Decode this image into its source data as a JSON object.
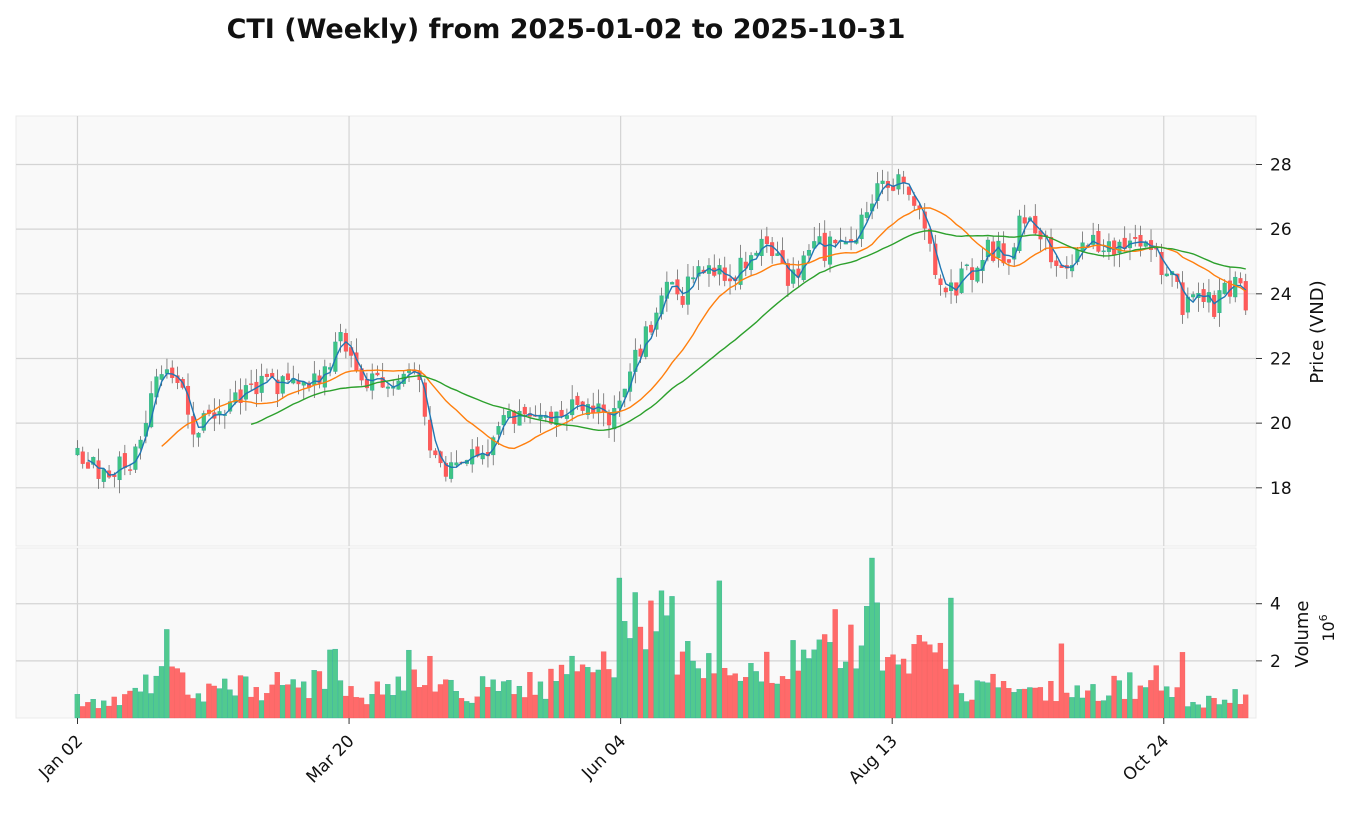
{
  "chart_data": {
    "type": "candlestick",
    "title": "CTI (Weekly) from 2025-01-02 to 2025-10-31",
    "price_panel": {
      "ylabel": "Price (VND)",
      "ylim": [
        16.2,
        29.5
      ],
      "yticks": [
        18,
        20,
        22,
        24,
        26,
        28
      ],
      "grid": true
    },
    "volume_panel": {
      "ylabel": "Volume",
      "scale_label": "10",
      "scale_exponent": "6",
      "ylim": [
        0,
        5.6
      ],
      "yticks": [
        2,
        4
      ],
      "yticks_label": [
        "2",
        "4"
      ],
      "grid": true
    },
    "x_ticks": [
      {
        "label": "Jan 02",
        "index": 0
      },
      {
        "label": "Mar 20",
        "index": 53
      },
      {
        "label": "Jun 04",
        "index": 106
      },
      {
        "label": "Aug 13",
        "index": 159
      },
      {
        "label": "Oct 24",
        "index": 212
      }
    ],
    "x_range": [
      -12,
      230
    ],
    "colors": {
      "up": "#26a69a",
      "up_fill": "#3ec483",
      "down": "#ef5350",
      "down_fill": "#ff5a5a",
      "ma_short": "#1f77b4",
      "ma_mid": "#ff7f0e",
      "ma_long": "#2ca02c",
      "grid": "#d4d4d4",
      "panel_bg": "#f9f9f9"
    },
    "price_anchors": [
      [
        0,
        18.9
      ],
      [
        4,
        18.6
      ],
      [
        7,
        18.5
      ],
      [
        10,
        18.8
      ],
      [
        12,
        19.2
      ],
      [
        14,
        20.5
      ],
      [
        16,
        21.8
      ],
      [
        18,
        21.5
      ],
      [
        20,
        21.4
      ],
      [
        22,
        20.0
      ],
      [
        24,
        19.8
      ],
      [
        26,
        20.3
      ],
      [
        30,
        20.5
      ],
      [
        33,
        21.0
      ],
      [
        36,
        21.2
      ],
      [
        40,
        21.2
      ],
      [
        44,
        21.0
      ],
      [
        48,
        21.6
      ],
      [
        50,
        22.2
      ],
      [
        52,
        22.9
      ],
      [
        53,
        21.8
      ],
      [
        56,
        21.4
      ],
      [
        60,
        21.3
      ],
      [
        63,
        21.5
      ],
      [
        66,
        21.6
      ],
      [
        67,
        21.0
      ],
      [
        68,
        19.8
      ],
      [
        70,
        18.9
      ],
      [
        72,
        18.5
      ],
      [
        74,
        18.9
      ],
      [
        77,
        19.0
      ],
      [
        79,
        18.7
      ],
      [
        81,
        19.6
      ],
      [
        84,
        20.0
      ],
      [
        87,
        20.3
      ],
      [
        90,
        20.2
      ],
      [
        93,
        20.3
      ],
      [
        96,
        20.5
      ],
      [
        99,
        20.6
      ],
      [
        102,
        20.4
      ],
      [
        104,
        20.2
      ],
      [
        106,
        20.5
      ],
      [
        108,
        21.8
      ],
      [
        110,
        22.3
      ],
      [
        112,
        23.1
      ],
      [
        114,
        24.1
      ],
      [
        116,
        24.3
      ],
      [
        118,
        23.8
      ],
      [
        120,
        24.5
      ],
      [
        122,
        25.0
      ],
      [
        124,
        24.7
      ],
      [
        127,
        24.6
      ],
      [
        130,
        24.8
      ],
      [
        132,
        25.2
      ],
      [
        134,
        25.4
      ],
      [
        136,
        25.1
      ],
      [
        138,
        24.6
      ],
      [
        140,
        24.4
      ],
      [
        142,
        24.9
      ],
      [
        144,
        25.6
      ],
      [
        146,
        25.2
      ],
      [
        148,
        25.7
      ],
      [
        150,
        25.9
      ],
      [
        152,
        25.8
      ],
      [
        154,
        26.8
      ],
      [
        156,
        27.3
      ],
      [
        158,
        27.4
      ],
      [
        160,
        27.5
      ],
      [
        162,
        27.3
      ],
      [
        164,
        26.9
      ],
      [
        166,
        25.6
      ],
      [
        168,
        24.1
      ],
      [
        170,
        23.9
      ],
      [
        172,
        24.4
      ],
      [
        174,
        24.6
      ],
      [
        176,
        25.0
      ],
      [
        178,
        25.4
      ],
      [
        180,
        25.3
      ],
      [
        182,
        25.1
      ],
      [
        184,
        26.4
      ],
      [
        186,
        26.7
      ],
      [
        188,
        25.6
      ],
      [
        190,
        25.3
      ],
      [
        192,
        24.8
      ],
      [
        194,
        24.7
      ],
      [
        196,
        25.4
      ],
      [
        198,
        25.7
      ],
      [
        200,
        25.5
      ],
      [
        202,
        25.3
      ],
      [
        204,
        25.5
      ],
      [
        206,
        25.8
      ],
      [
        208,
        25.7
      ],
      [
        210,
        25.3
      ],
      [
        212,
        24.7
      ],
      [
        214,
        24.6
      ],
      [
        216,
        23.5
      ],
      [
        218,
        23.8
      ],
      [
        220,
        24.0
      ],
      [
        222,
        23.6
      ],
      [
        224,
        24.1
      ],
      [
        226,
        24.2
      ],
      [
        228,
        23.8
      ]
    ],
    "volume_anchors": [
      [
        0,
        0.6
      ],
      [
        6,
        0.5
      ],
      [
        12,
        0.8
      ],
      [
        14,
        1.2
      ],
      [
        16,
        2.2
      ],
      [
        18,
        1.5
      ],
      [
        20,
        1.3
      ],
      [
        22,
        1.1
      ],
      [
        24,
        1.0
      ],
      [
        28,
        1.1
      ],
      [
        32,
        1.2
      ],
      [
        36,
        1.1
      ],
      [
        40,
        1.2
      ],
      [
        44,
        1.0
      ],
      [
        48,
        1.6
      ],
      [
        50,
        2.0
      ],
      [
        52,
        1.3
      ],
      [
        54,
        0.8
      ],
      [
        58,
        0.9
      ],
      [
        62,
        0.9
      ],
      [
        64,
        1.5
      ],
      [
        66,
        2.0
      ],
      [
        68,
        1.8
      ],
      [
        70,
        1.1
      ],
      [
        72,
        1.0
      ],
      [
        76,
        0.8
      ],
      [
        80,
        1.2
      ],
      [
        84,
        1.0
      ],
      [
        88,
        1.1
      ],
      [
        92,
        1.2
      ],
      [
        96,
        1.8
      ],
      [
        100,
        1.5
      ],
      [
        104,
        1.7
      ],
      [
        106,
        2.4
      ],
      [
        108,
        3.6
      ],
      [
        110,
        2.7
      ],
      [
        112,
        3.4
      ],
      [
        114,
        3.6
      ],
      [
        116,
        3.0
      ],
      [
        118,
        2.4
      ],
      [
        120,
        2.0
      ],
      [
        122,
        2.2
      ],
      [
        124,
        1.5
      ],
      [
        128,
        1.3
      ],
      [
        132,
        1.7
      ],
      [
        136,
        1.9
      ],
      [
        140,
        2.0
      ],
      [
        144,
        2.6
      ],
      [
        148,
        2.8
      ],
      [
        152,
        3.0
      ],
      [
        156,
        3.0
      ],
      [
        160,
        2.4
      ],
      [
        164,
        2.5
      ],
      [
        166,
        3.0
      ],
      [
        168,
        2.2
      ],
      [
        170,
        1.2
      ],
      [
        172,
        0.9
      ],
      [
        176,
        1.0
      ],
      [
        180,
        1.4
      ],
      [
        184,
        1.5
      ],
      [
        188,
        1.0
      ],
      [
        192,
        0.8
      ],
      [
        196,
        0.8
      ],
      [
        200,
        0.9
      ],
      [
        204,
        1.1
      ],
      [
        208,
        1.2
      ],
      [
        210,
        1.4
      ],
      [
        212,
        1.0
      ],
      [
        216,
        0.7
      ],
      [
        220,
        0.6
      ],
      [
        224,
        0.7
      ],
      [
        228,
        0.8
      ]
    ],
    "volume_spikes": [
      {
        "index": 17,
        "value": 3.1
      },
      {
        "index": 106,
        "value": 4.9
      },
      {
        "index": 112,
        "value": 4.1
      },
      {
        "index": 125,
        "value": 4.8
      },
      {
        "index": 148,
        "value": 3.8
      },
      {
        "index": 155,
        "value": 5.6
      },
      {
        "index": 164,
        "value": 2.9
      },
      {
        "index": 171,
        "value": 4.2
      },
      {
        "index": 192,
        "value": 2.6
      },
      {
        "index": 216,
        "value": 2.3
      }
    ],
    "bar_count": 223,
    "moving_averages": [
      {
        "key": "ma_short",
        "window": 10
      },
      {
        "key": "ma_mid",
        "window": 50
      },
      {
        "key": "ma_long",
        "window": 100
      }
    ]
  }
}
